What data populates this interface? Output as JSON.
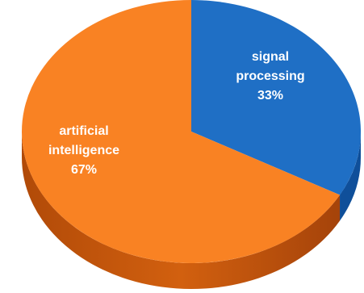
{
  "chart_data": {
    "type": "pie",
    "three_d": true,
    "start": "12 o'clock, clockwise",
    "slices": [
      {
        "label_lines": [
          "signal",
          "processing",
          "33%"
        ],
        "category": "signal processing",
        "value": 33,
        "color": "#1f6fc5",
        "side_color": "#0f4f9a"
      },
      {
        "label_lines": [
          "artificial",
          "intelligence",
          "67%"
        ],
        "category": "artificial intelligence",
        "value": 67,
        "color": "#f98223",
        "side_color": "#cc5a10"
      }
    ]
  }
}
